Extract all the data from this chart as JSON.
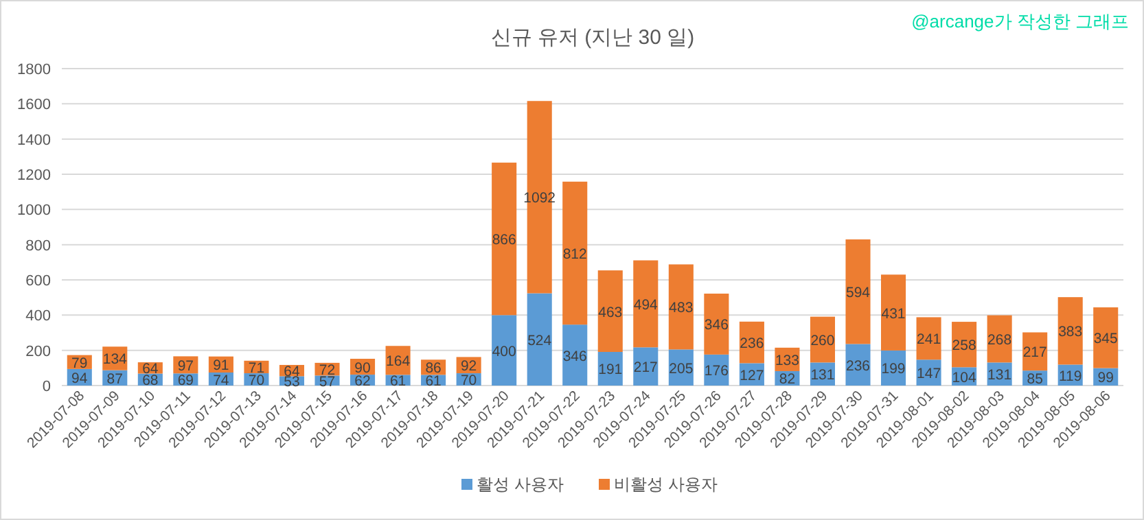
{
  "chart_data": {
    "type": "bar",
    "title": "신규 유저 (지난 30 일)",
    "stacked": true,
    "legend": "bottom",
    "grid": "y",
    "data_labels": true,
    "annotations": [
      "@arcange가 작성한 그래프"
    ],
    "categories": [
      "2019-07-08",
      "2019-07-09",
      "2019-07-10",
      "2019-07-11",
      "2019-07-12",
      "2019-07-13",
      "2019-07-14",
      "2019-07-15",
      "2019-07-16",
      "2019-07-17",
      "2019-07-18",
      "2019-07-19",
      "2019-07-20",
      "2019-07-21",
      "2019-07-22",
      "2019-07-23",
      "2019-07-24",
      "2019-07-25",
      "2019-07-26",
      "2019-07-27",
      "2019-07-28",
      "2019-07-29",
      "2019-07-30",
      "2019-07-31",
      "2019-08-01",
      "2019-08-02",
      "2019-08-03",
      "2019-08-04",
      "2019-08-05",
      "2019-08-06"
    ],
    "ylim": [
      0,
      1800
    ],
    "yticks": [
      0,
      200,
      400,
      600,
      800,
      1000,
      1200,
      1400,
      1600,
      1800
    ],
    "series": [
      {
        "name": "활성 사용자",
        "color": "#5b9bd5",
        "values": [
          94,
          87,
          68,
          69,
          74,
          70,
          53,
          57,
          62,
          61,
          61,
          70,
          400,
          524,
          346,
          191,
          217,
          205,
          176,
          127,
          82,
          131,
          236,
          199,
          147,
          104,
          131,
          85,
          119,
          99
        ]
      },
      {
        "name": "비활성 사용자",
        "color": "#ed7d31",
        "values": [
          79,
          134,
          64,
          97,
          91,
          71,
          64,
          72,
          90,
          164,
          86,
          92,
          866,
          1092,
          812,
          463,
          494,
          483,
          346,
          236,
          133,
          260,
          594,
          431,
          241,
          258,
          268,
          217,
          383,
          345
        ]
      }
    ]
  }
}
